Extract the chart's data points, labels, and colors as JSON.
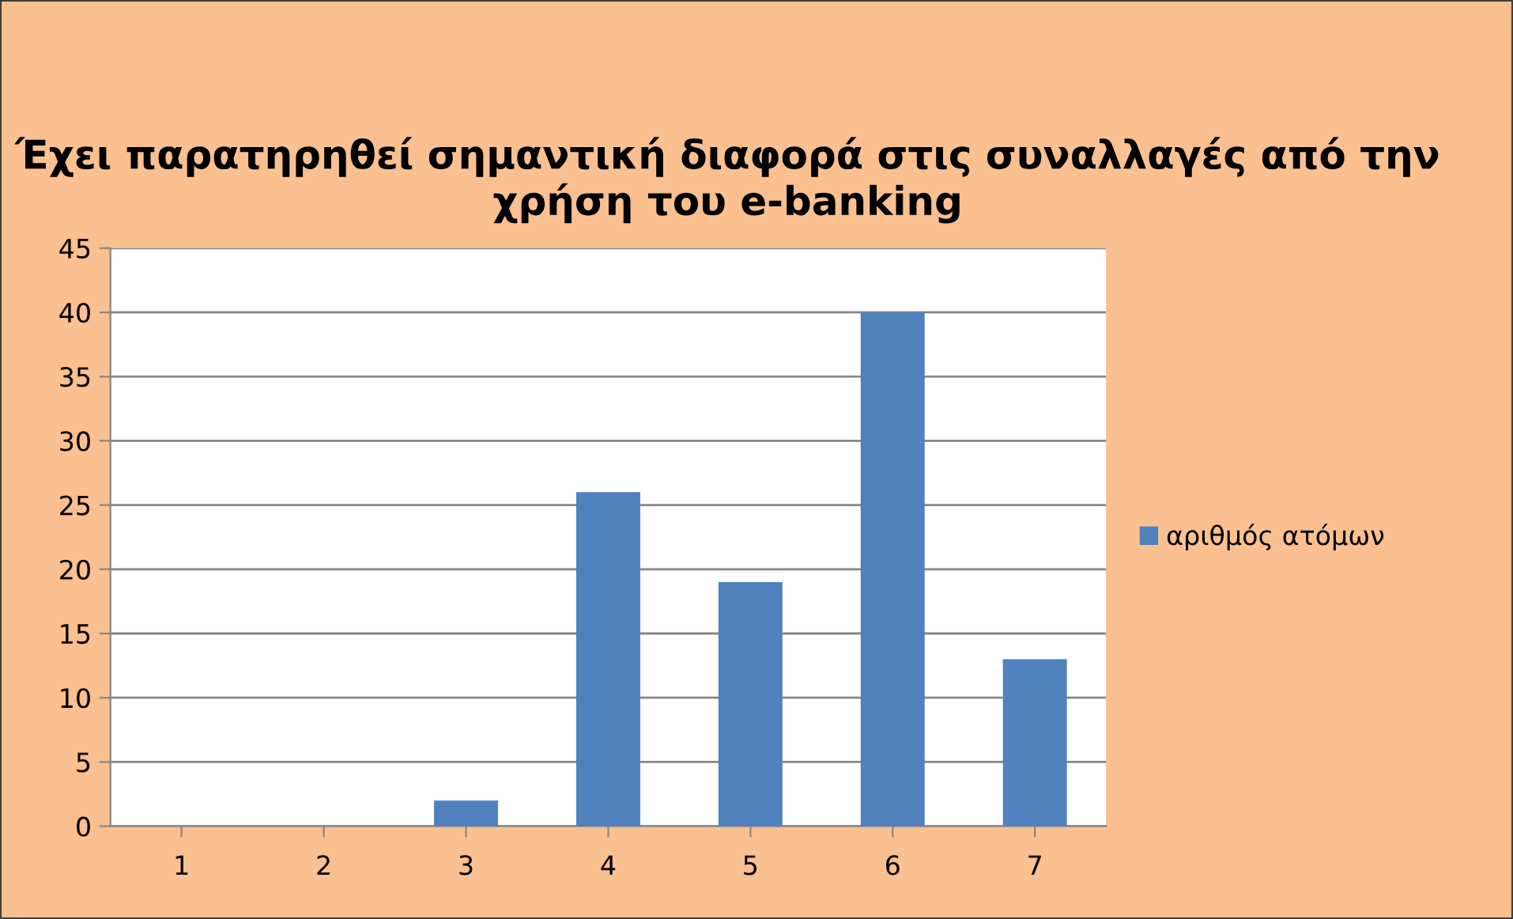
{
  "chart_data": {
    "type": "bar",
    "title": "Έχει παρατηρηθεί σημαντική διαφορά στις συναλλαγές από την χρήση του e-banking",
    "categories": [
      "1",
      "2",
      "3",
      "4",
      "5",
      "6",
      "7"
    ],
    "series": [
      {
        "name": "αριθμός ατόμων",
        "color": "#4f81bd",
        "values": [
          0,
          0,
          2,
          26,
          19,
          40,
          13
        ]
      }
    ],
    "ylim": [
      0,
      45
    ],
    "yticks": [
      0,
      5,
      10,
      15,
      20,
      25,
      30,
      35,
      40,
      45
    ],
    "grid": "y",
    "legend": "right"
  }
}
